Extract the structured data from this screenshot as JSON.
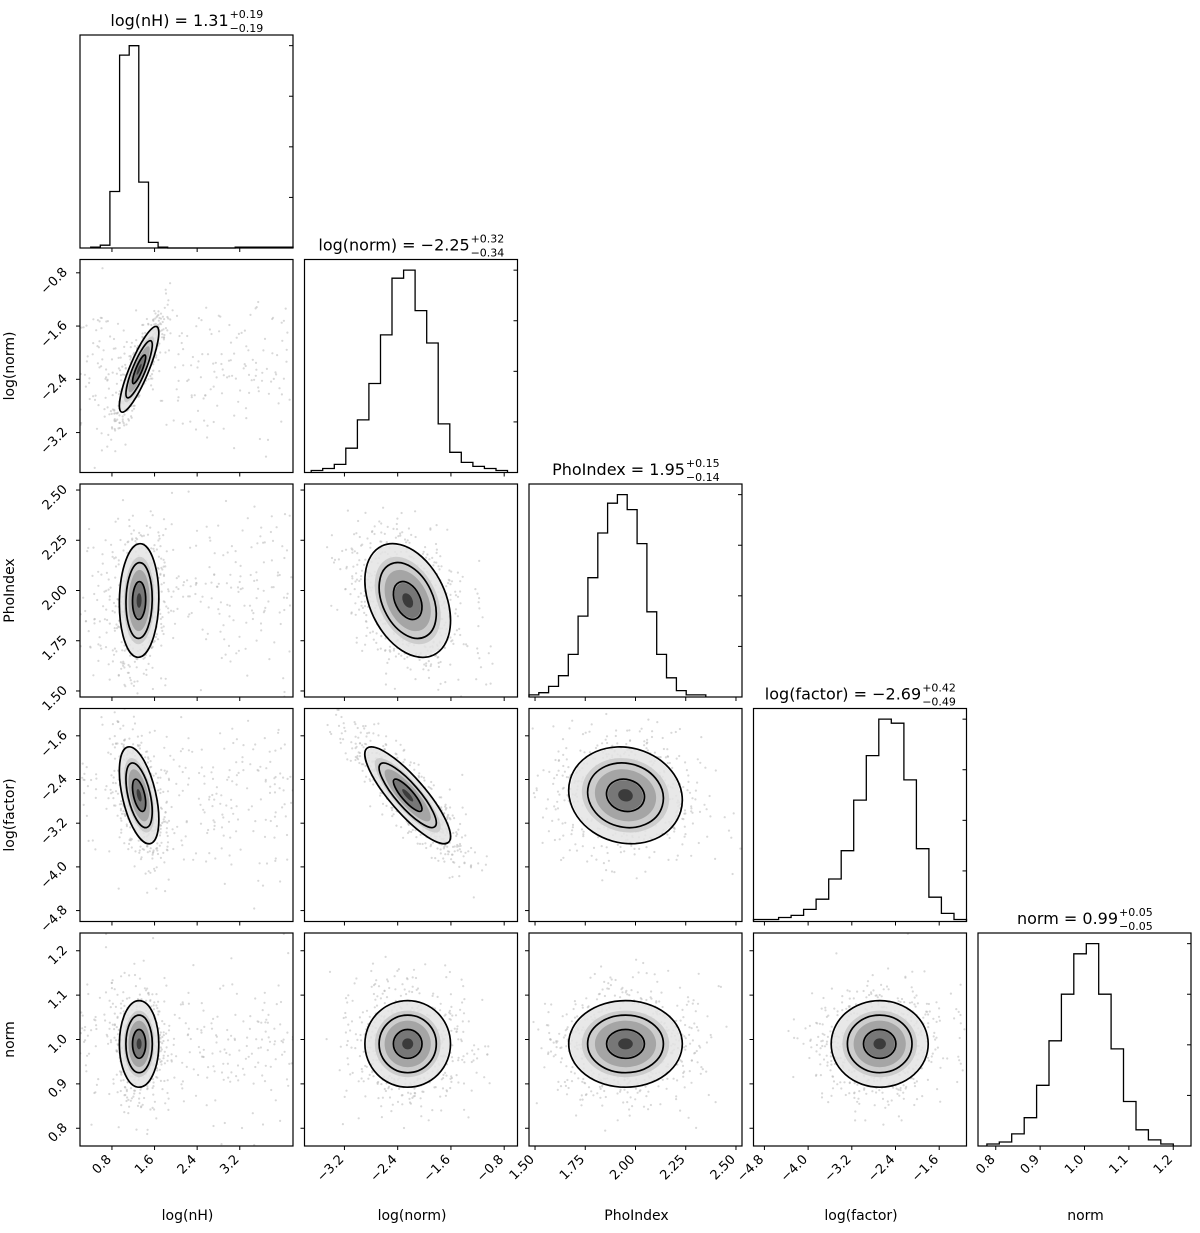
{
  "chart_data": {
    "type": "corner",
    "parameters": [
      {
        "name": "log(nH)",
        "title_main": "log(nH) = 1.31",
        "title_plus": "+0.19",
        "title_minus": "−0.19",
        "median": 1.31,
        "err_plus": 0.19,
        "err_minus": 0.19,
        "range": [
          0.2,
          4.2
        ],
        "ticks": [
          0.8,
          1.6,
          2.4,
          3.2
        ],
        "tick_labels": [
          "0.8",
          "1.6",
          "2.4",
          "3.2"
        ]
      },
      {
        "name": "log(norm)",
        "title_main": "log(norm) = −2.25",
        "title_plus": "+0.32",
        "title_minus": "−0.34",
        "median": -2.25,
        "err_plus": 0.32,
        "err_minus": 0.34,
        "range": [
          -3.8,
          -0.6
        ],
        "ticks": [
          -3.2,
          -2.4,
          -1.6,
          -0.8
        ],
        "tick_labels": [
          "−3.2",
          "−2.4",
          "−1.6",
          "−0.8"
        ]
      },
      {
        "name": "PhoIndex",
        "title_main": "PhoIndex = 1.95",
        "title_plus": "+0.15",
        "title_minus": "−0.14",
        "median": 1.95,
        "err_plus": 0.15,
        "err_minus": 0.14,
        "range": [
          1.47,
          2.53
        ],
        "ticks": [
          1.5,
          1.75,
          2.0,
          2.25,
          2.5
        ],
        "tick_labels": [
          "1.50",
          "1.75",
          "2.00",
          "2.25",
          "2.50"
        ]
      },
      {
        "name": "log(factor)",
        "title_main": "log(factor) = −2.69",
        "title_plus": "+0.42",
        "title_minus": "−0.49",
        "median": -2.69,
        "err_plus": 0.42,
        "err_minus": 0.49,
        "range": [
          -5.0,
          -1.1
        ],
        "ticks": [
          -4.8,
          -4.0,
          -3.2,
          -2.4,
          -1.6
        ],
        "tick_labels": [
          "−4.8",
          "−4.0",
          "−3.2",
          "−2.4",
          "−1.6"
        ]
      },
      {
        "name": "norm",
        "title_main": "norm = 0.99",
        "title_plus": "+0.05",
        "title_minus": "−0.05",
        "median": 0.99,
        "err_plus": 0.05,
        "err_minus": 0.05,
        "range": [
          0.76,
          1.24
        ],
        "ticks": [
          0.8,
          0.9,
          1.0,
          1.1,
          1.2
        ],
        "tick_labels": [
          "0.8",
          "0.9",
          "1.0",
          "1.1",
          "1.2"
        ]
      }
    ],
    "histograms": [
      {
        "param": "log(nH)",
        "bin_lo": 0.4,
        "bin_hi": 4.2,
        "counts": [
          1,
          3,
          60,
          205,
          215,
          70,
          6,
          1,
          0,
          0,
          0,
          0,
          0,
          0,
          0,
          1,
          1,
          1,
          1,
          1,
          1
        ]
      },
      {
        "param": "log(norm)",
        "bin_lo": -3.7,
        "bin_hi": -0.75,
        "counts": [
          1,
          2,
          4,
          12,
          26,
          44,
          68,
          96,
          100,
          80,
          64,
          24,
          10,
          5,
          3,
          2,
          1
        ]
      },
      {
        "param": "PhoIndex",
        "bin_lo": 1.47,
        "bin_hi": 2.35,
        "counts": [
          1,
          2,
          5,
          10,
          20,
          38,
          56,
          77,
          91,
          95,
          88,
          72,
          40,
          20,
          9,
          3,
          1,
          1
        ]
      },
      {
        "param": "log(factor)",
        "bin_lo": -5.0,
        "bin_hi": -1.1,
        "counts": [
          1,
          1,
          2,
          3,
          6,
          11,
          21,
          35,
          60,
          82,
          100,
          98,
          70,
          36,
          12,
          4,
          1
        ]
      },
      {
        "param": "norm",
        "bin_lo": 0.78,
        "bin_hi": 1.2,
        "counts": [
          1,
          2,
          6,
          14,
          30,
          52,
          75,
          95,
          100,
          75,
          48,
          22,
          8,
          3,
          1
        ]
      }
    ],
    "correlations": [
      {
        "x": "log(nH)",
        "y": "log(norm)",
        "rho": 0.85
      },
      {
        "x": "log(nH)",
        "y": "PhoIndex",
        "rho": 0.05
      },
      {
        "x": "log(norm)",
        "y": "PhoIndex",
        "rho": -0.35
      },
      {
        "x": "log(nH)",
        "y": "log(factor)",
        "rho": -0.5
      },
      {
        "x": "log(norm)",
        "y": "log(factor)",
        "rho": -0.85
      },
      {
        "x": "PhoIndex",
        "y": "log(factor)",
        "rho": -0.1
      },
      {
        "x": "log(nH)",
        "y": "norm",
        "rho": 0.0
      },
      {
        "x": "log(norm)",
        "y": "norm",
        "rho": 0.0
      },
      {
        "x": "PhoIndex",
        "y": "norm",
        "rho": 0.0
      },
      {
        "x": "log(factor)",
        "y": "norm",
        "rho": 0.0
      }
    ],
    "contour_levels_sigma": [
      0.5,
      1.0,
      1.5
    ]
  }
}
